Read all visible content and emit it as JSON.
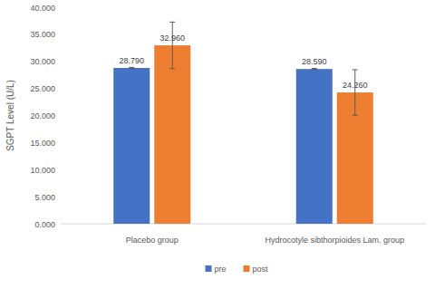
{
  "chart_data": {
    "type": "bar",
    "y_label": "SGPT Level (U/L)",
    "categories": [
      "Placebo group",
      "Hydrocotyle sibthorpioides Lam. group"
    ],
    "series": [
      {
        "name": "pre",
        "color": "#4472c4",
        "values": [
          28.79,
          28.59
        ],
        "value_labels": [
          "28.790",
          "28.590"
        ],
        "errors": [
          0.1,
          0.1
        ]
      },
      {
        "name": "post",
        "color": "#ed7d31",
        "values": [
          32.96,
          24.26
        ],
        "value_labels": [
          "32.960",
          "24.260"
        ],
        "errors": [
          4.3,
          4.2
        ]
      }
    ],
    "ylim": [
      0,
      40
    ],
    "yticks": [
      {
        "value": 0,
        "label": "0.000"
      },
      {
        "value": 5,
        "label": "5.000"
      },
      {
        "value": 10,
        "label": "10.000"
      },
      {
        "value": 15,
        "label": "15.000"
      },
      {
        "value": 20,
        "label": "20.000"
      },
      {
        "value": 25,
        "label": "25.000"
      },
      {
        "value": 30,
        "label": "30.000"
      },
      {
        "value": 35,
        "label": "35.000"
      },
      {
        "value": 40,
        "label": "40.000"
      }
    ],
    "grid": false,
    "legend": "bottom",
    "data_labels": true
  }
}
